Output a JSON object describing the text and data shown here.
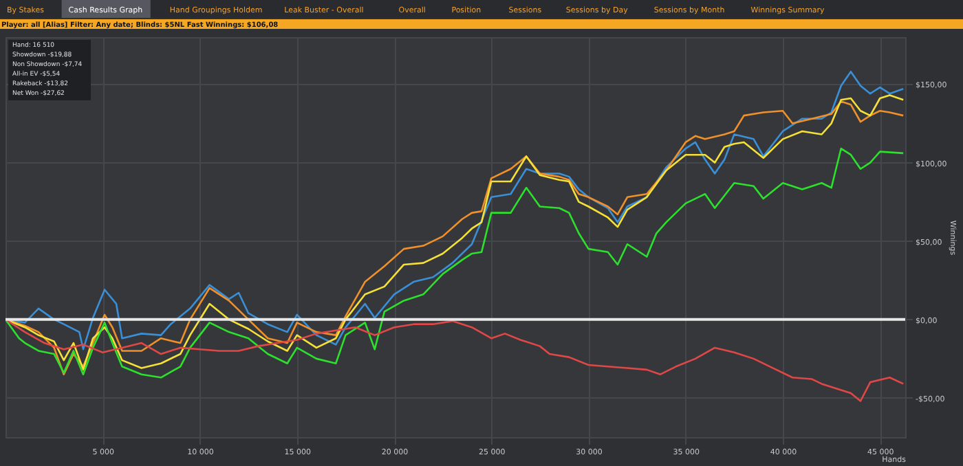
{
  "chart_data": {
    "type": "line",
    "title": "Player: all [Alias] Filter: Any date; Blinds: $5NL Fast Winnings: $106,08",
    "xlabel": "Hands",
    "ylabel": "Winnings",
    "annotations": [
      "By Stakes",
      "Cash Results Graph",
      "Hand Groupings Holdem",
      "Leak Buster - Overall",
      "Overall",
      "Position",
      "Sessions",
      "Sessions by Day",
      "Sessions by Month",
      "Winnings Summary",
      "Hand:  16 510",
      "Showdown  -$19,88",
      "Non Showdown  -$7,74",
      "All-in EV  -$5,54",
      "Rakeback  -$13,82",
      "Net Won  -$27,62"
    ],
    "xlim": [
      0,
      46300
    ],
    "ylim": [
      -75,
      180
    ],
    "xticks": [
      {
        "value": 5000,
        "label": "5 000"
      },
      {
        "value": 10000,
        "label": "10 000"
      },
      {
        "value": 15000,
        "label": "15 000"
      },
      {
        "value": 20000,
        "label": "20 000"
      },
      {
        "value": 25000,
        "label": "25 000"
      },
      {
        "value": 30000,
        "label": "30 000"
      },
      {
        "value": 35000,
        "label": "35 000"
      },
      {
        "value": 40000,
        "label": "40 000"
      },
      {
        "value": 45000,
        "label": "45 000"
      }
    ],
    "yticks": [
      {
        "value": -50,
        "label": "-$50,00"
      },
      {
        "value": 0,
        "label": "$0,00"
      },
      {
        "value": 50,
        "label": "$50,00"
      },
      {
        "value": 100,
        "label": "$100,00"
      },
      {
        "value": 150,
        "label": "$150,00"
      }
    ],
    "grid": true,
    "marker": "none",
    "line_style": "solid",
    "ref_lines": [
      {
        "axis": "y",
        "value": 0,
        "label": null,
        "color": "#e8e8e8"
      }
    ],
    "series": [
      {
        "color": "#3a8fd6",
        "x": [
          0,
          1000,
          1700,
          2500,
          3000,
          3800,
          4000,
          4500,
          5100,
          5700,
          6000,
          7000,
          8000,
          8500,
          9500,
          10500,
          11500,
          12000,
          12500,
          13500,
          14500,
          15000,
          16000,
          17000,
          17500,
          18500,
          19000,
          20000,
          21000,
          22000,
          23000,
          24000,
          25000,
          26000,
          26800,
          27500,
          28500,
          29000,
          29500,
          30000,
          31000,
          31500,
          32000,
          33000,
          34000,
          35000,
          35500,
          36000,
          36500,
          37000,
          37500,
          38500,
          39000,
          40000,
          41000,
          42000,
          42500,
          43000,
          43500,
          44000,
          44500,
          45000,
          45500,
          46200
        ],
        "values": [
          0,
          -2,
          7,
          0,
          -3,
          -8,
          -19,
          1,
          19,
          10,
          -12,
          -9,
          -10,
          -3,
          7,
          22,
          13,
          17,
          4,
          -3,
          -8,
          3,
          -10,
          -16,
          -5,
          10,
          1,
          16,
          24,
          27,
          36,
          48,
          78,
          80,
          96,
          93,
          93,
          91,
          83,
          78,
          71,
          62,
          72,
          78,
          97,
          109,
          113,
          102,
          93,
          102,
          118,
          115,
          104,
          120,
          128,
          128,
          132,
          149,
          158,
          149,
          144,
          148,
          144,
          147
        ]
      },
      {
        "color": "#f0902a",
        "x": [
          0,
          1000,
          1700,
          2500,
          3000,
          3500,
          4000,
          4500,
          5100,
          5500,
          6000,
          7000,
          8000,
          9000,
          9500,
          10500,
          11500,
          12500,
          13500,
          14500,
          15000,
          16000,
          17000,
          17500,
          18500,
          19500,
          20500,
          21500,
          22500,
          23500,
          24000,
          24500,
          25000,
          26000,
          26800,
          27500,
          28500,
          29000,
          29500,
          30000,
          31000,
          31500,
          32000,
          33000,
          34000,
          35000,
          35500,
          36000,
          37000,
          37500,
          38000,
          39000,
          40000,
          40500,
          41500,
          42500,
          43000,
          43500,
          44000,
          44500,
          45000,
          45500,
          46200
        ],
        "values": [
          0,
          -4,
          -8,
          -18,
          -35,
          -22,
          -30,
          -15,
          3,
          -5,
          -20,
          -20,
          -12,
          -15,
          0,
          20,
          12,
          0,
          -12,
          -15,
          -2,
          -8,
          -10,
          2,
          24,
          34,
          45,
          47,
          53,
          64,
          68,
          69,
          90,
          96,
          104,
          93,
          91,
          89,
          80,
          78,
          72,
          67,
          78,
          80,
          95,
          113,
          117,
          115,
          118,
          120,
          130,
          132,
          133,
          125,
          128,
          131,
          139,
          137,
          126,
          130,
          133,
          132,
          130
        ]
      },
      {
        "color": "#f5e03a",
        "x": [
          0,
          1000,
          1700,
          2500,
          3000,
          3500,
          4000,
          4500,
          5100,
          5500,
          6000,
          7000,
          8000,
          9000,
          9500,
          10500,
          11500,
          12500,
          13500,
          14500,
          15000,
          16000,
          17000,
          17500,
          18500,
          19500,
          20500,
          21500,
          22500,
          23500,
          24000,
          24500,
          25000,
          26000,
          26800,
          27500,
          28500,
          29000,
          29500,
          30000,
          31000,
          31500,
          32000,
          33000,
          34000,
          35000,
          36000,
          36500,
          37000,
          37500,
          38000,
          39000,
          40000,
          41000,
          42000,
          42500,
          43000,
          43500,
          44000,
          44500,
          45000,
          45500,
          46200
        ],
        "values": [
          0,
          -5,
          -10,
          -14,
          -26,
          -15,
          -32,
          -12,
          -5,
          -12,
          -26,
          -31,
          -28,
          -22,
          -10,
          10,
          0,
          -6,
          -14,
          -20,
          -10,
          -18,
          -12,
          0,
          16,
          21,
          35,
          36,
          42,
          52,
          58,
          62,
          88,
          88,
          104,
          92,
          89,
          88,
          75,
          72,
          65,
          59,
          70,
          78,
          95,
          105,
          105,
          100,
          110,
          112,
          113,
          103,
          115,
          120,
          118,
          125,
          140,
          141,
          133,
          130,
          141,
          143,
          140
        ]
      },
      {
        "color": "#2ee02e",
        "x": [
          0,
          700,
          1000,
          1700,
          2500,
          3000,
          3500,
          4000,
          4500,
          5100,
          5500,
          6000,
          7000,
          8000,
          9000,
          9500,
          10500,
          11500,
          12500,
          13500,
          14500,
          15000,
          16000,
          17000,
          17500,
          18500,
          19000,
          19500,
          20500,
          21500,
          22500,
          23500,
          24000,
          24500,
          25000,
          26000,
          26800,
          27500,
          28500,
          29000,
          29500,
          30000,
          31000,
          31500,
          32000,
          33000,
          33500,
          34000,
          35000,
          36000,
          36500,
          37500,
          38500,
          39000,
          40000,
          41000,
          42000,
          42500,
          43000,
          43500,
          44000,
          44500,
          45000,
          46200
        ],
        "values": [
          0,
          -12,
          -15,
          -20,
          -22,
          -34,
          -20,
          -35,
          -18,
          -2,
          -15,
          -30,
          -35,
          -37,
          -30,
          -18,
          -2,
          -8,
          -12,
          -22,
          -28,
          -18,
          -25,
          -28,
          -10,
          -2,
          -19,
          5,
          12,
          16,
          29,
          38,
          42,
          43,
          68,
          68,
          84,
          72,
          71,
          68,
          55,
          45,
          43,
          35,
          48,
          40,
          55,
          62,
          74,
          80,
          71,
          87,
          85,
          77,
          87,
          83,
          87,
          84,
          109,
          105,
          96,
          100,
          107,
          106
        ]
      },
      {
        "color": "#e04848",
        "x": [
          0,
          1000,
          2000,
          3000,
          4000,
          5000,
          6000,
          7000,
          8000,
          9000,
          10000,
          11000,
          12000,
          13000,
          14000,
          15000,
          16000,
          17000,
          18000,
          19000,
          20000,
          21000,
          22000,
          23000,
          24000,
          25000,
          25700,
          26500,
          27500,
          28000,
          29000,
          30000,
          31000,
          32000,
          33000,
          33700,
          34500,
          35500,
          36500,
          37500,
          38500,
          39500,
          40500,
          41500,
          42000,
          43000,
          43500,
          44000,
          44500,
          45500,
          46200
        ],
        "values": [
          0,
          -8,
          -15,
          -19,
          -16,
          -21,
          -18,
          -15,
          -22,
          -18,
          -19,
          -20,
          -20,
          -17,
          -15,
          -13,
          -9,
          -7,
          -5,
          -10,
          -5,
          -3,
          -3,
          -1,
          -5,
          -12,
          -9,
          -13,
          -17,
          -22,
          -24,
          -29,
          -30,
          -31,
          -32,
          -35,
          -30,
          -25,
          -18,
          -21,
          -25,
          -31,
          -37,
          -38,
          -41,
          -45,
          -47,
          -52,
          -40,
          -37,
          -41
        ]
      }
    ]
  }
}
